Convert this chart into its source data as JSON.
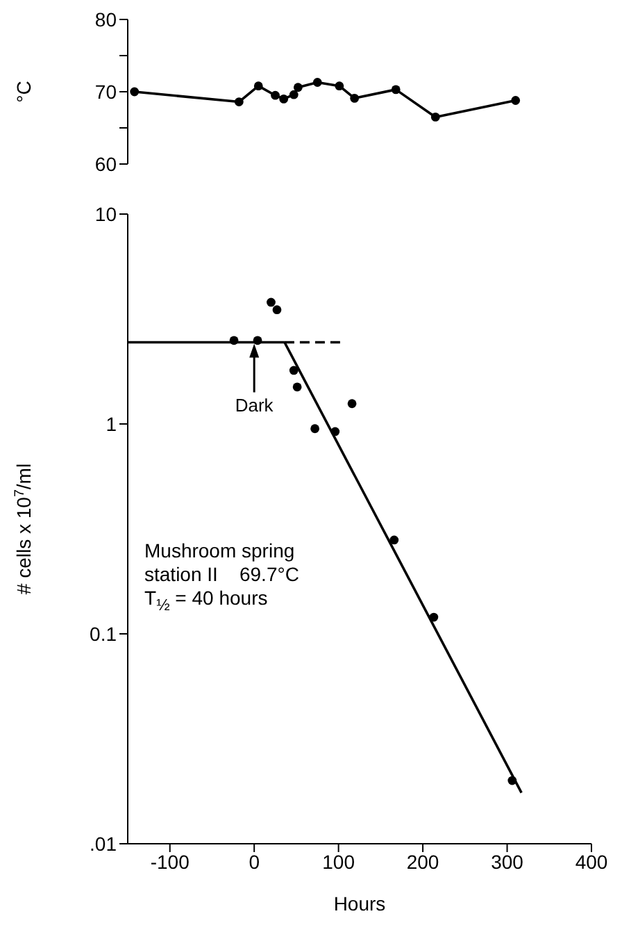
{
  "chart_data": [
    {
      "type": "line",
      "ylabel": "°C",
      "x": [
        -142,
        -18,
        5,
        25,
        35,
        47,
        52,
        75,
        101,
        119,
        168,
        215,
        310
      ],
      "values": [
        70.0,
        68.6,
        70.8,
        69.5,
        69.0,
        69.6,
        70.6,
        71.3,
        70.8,
        69.1,
        70.3,
        66.5,
        68.8
      ],
      "color": "#000000",
      "marker": "circle",
      "line_style": "solid",
      "xlim": [
        -150,
        400
      ],
      "ylim": [
        60,
        80
      ],
      "yticks": [
        60,
        {
          "value": 65,
          "label": null
        },
        70,
        {
          "value": 75,
          "label": null
        },
        80
      ],
      "tick_labels": "y"
    },
    {
      "type": "scatter",
      "xlabel": "Hours",
      "ylabel": "# cells x 10$^{7}$/ml",
      "log": "y",
      "xlim": [
        -150,
        400
      ],
      "ylim": [
        0.01,
        10
      ],
      "xticks": [
        -100,
        0,
        100,
        200,
        300,
        400
      ],
      "yticks": [
        {
          "value": 0.01,
          "label": ".01"
        },
        0.1,
        1,
        10
      ],
      "series": [
        {
          "color": "#000000",
          "marker": "circle",
          "x": [
            -24,
            4,
            20,
            27,
            47,
            51,
            72,
            96,
            116,
            166,
            213,
            306
          ],
          "values": [
            2.5,
            2.5,
            3.8,
            3.5,
            1.8,
            1.5,
            0.95,
            0.92,
            1.25,
            0.28,
            0.12,
            0.02
          ]
        },
        {
          "type": "line",
          "color": "#000000",
          "marker": "none",
          "line_style": "solid",
          "x": [
            -150,
            36
          ],
          "values": [
            2.45,
            2.45
          ]
        },
        {
          "type": "line",
          "color": "#000000",
          "marker": "none",
          "line_style": "dashed",
          "x": [
            36,
            104
          ],
          "values": [
            2.45,
            2.45
          ]
        },
        {
          "type": "line",
          "color": "#000000",
          "marker": "none",
          "line_style": "solid",
          "x": [
            36,
            317
          ],
          "values": [
            2.45,
            0.0175
          ]
        }
      ],
      "annotations": [
        {
          "text": "Dark",
          "x": 0,
          "y": 2.45
        },
        "Mushroom spring",
        "station II    69.7°C",
        "T$_{½}$ = 40 hours"
      ]
    }
  ]
}
